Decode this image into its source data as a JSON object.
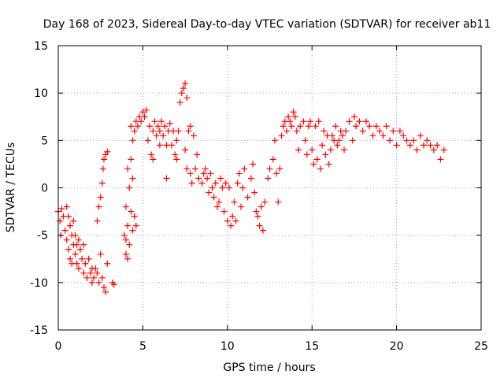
{
  "chart_data": {
    "type": "scatter",
    "title": "Day 168 of 2023, Sidereal Day-to-day VTEC variation (SDTVAR) for receiver ab11",
    "xlabel": "GPS time / hours",
    "ylabel": "SDTVAR / TECUs",
    "xlim": [
      0,
      25
    ],
    "ylim": [
      -15,
      15
    ],
    "xticks": [
      0,
      5,
      10,
      15,
      20,
      25
    ],
    "yticks": [
      -15,
      -10,
      -5,
      0,
      5,
      10,
      15
    ],
    "xtick_labels": [
      "0",
      "5",
      "10",
      "15",
      "20",
      "25"
    ],
    "ytick_labels": [
      "-15",
      "-10",
      "-5",
      "0",
      "5",
      "10",
      "15"
    ],
    "grid": true,
    "marker": "plus",
    "marker_color": "#ff0000",
    "series": [
      {
        "name": "SDTVAR",
        "points": [
          [
            0.0,
            -2.5
          ],
          [
            0.1,
            -3.5
          ],
          [
            0.15,
            -5.0
          ],
          [
            0.2,
            -2.2
          ],
          [
            0.3,
            -3.0
          ],
          [
            0.4,
            -4.5
          ],
          [
            0.5,
            -2.0
          ],
          [
            0.5,
            -5.5
          ],
          [
            0.6,
            -3.0
          ],
          [
            0.6,
            -6.5
          ],
          [
            0.7,
            -4.0
          ],
          [
            0.7,
            -7.5
          ],
          [
            0.8,
            -5.0
          ],
          [
            0.8,
            -8.0
          ],
          [
            0.9,
            -6.0
          ],
          [
            0.9,
            -3.5
          ],
          [
            1.0,
            -7.0
          ],
          [
            1.0,
            -5.0
          ],
          [
            1.1,
            -8.0
          ],
          [
            1.1,
            -6.0
          ],
          [
            1.2,
            -5.5
          ],
          [
            1.2,
            -8.5
          ],
          [
            1.3,
            -6.5
          ],
          [
            1.4,
            -7.5
          ],
          [
            1.5,
            -6.0
          ],
          [
            1.5,
            -9.0
          ],
          [
            1.6,
            -8.0
          ],
          [
            1.7,
            -9.5
          ],
          [
            1.8,
            -7.5
          ],
          [
            1.9,
            -9.0
          ],
          [
            2.0,
            -8.5
          ],
          [
            2.0,
            -10.0
          ],
          [
            2.1,
            -9.5
          ],
          [
            2.2,
            -8.5
          ],
          [
            2.3,
            -9.0
          ],
          [
            2.3,
            -3.5
          ],
          [
            2.4,
            -10.0
          ],
          [
            2.4,
            -2.0
          ],
          [
            2.5,
            -7.0
          ],
          [
            2.5,
            -1.0
          ],
          [
            2.6,
            -9.5
          ],
          [
            2.6,
            0.5
          ],
          [
            2.65,
            2.0
          ],
          [
            2.7,
            -10.5
          ],
          [
            2.7,
            3.0
          ],
          [
            2.8,
            -11.0
          ],
          [
            2.8,
            3.5
          ],
          [
            2.9,
            3.8
          ],
          [
            2.9,
            -8.0
          ],
          [
            3.2,
            -10.0
          ],
          [
            3.3,
            -10.2
          ],
          [
            3.9,
            -5.0
          ],
          [
            4.0,
            -7.0
          ],
          [
            4.0,
            -5.5
          ],
          [
            4.0,
            -2.0
          ],
          [
            4.1,
            -7.5
          ],
          [
            4.1,
            -4.0
          ],
          [
            4.1,
            2.0
          ],
          [
            4.2,
            -6.0
          ],
          [
            4.2,
            0.0
          ],
          [
            4.3,
            -2.5
          ],
          [
            4.3,
            3.0
          ],
          [
            4.3,
            6.5
          ],
          [
            4.4,
            -4.5
          ],
          [
            4.4,
            1.0
          ],
          [
            4.4,
            5.0
          ],
          [
            4.5,
            -3.0
          ],
          [
            4.5,
            6.0
          ],
          [
            4.6,
            -4.0
          ],
          [
            4.6,
            7.0
          ],
          [
            4.7,
            6.5
          ],
          [
            4.8,
            7.5
          ],
          [
            4.9,
            7.0
          ],
          [
            5.0,
            8.0
          ],
          [
            5.1,
            7.5
          ],
          [
            5.2,
            8.2
          ],
          [
            5.3,
            5.0
          ],
          [
            5.4,
            6.5
          ],
          [
            5.5,
            3.5
          ],
          [
            5.6,
            6.0
          ],
          [
            5.6,
            3.0
          ],
          [
            5.7,
            7.0
          ],
          [
            5.8,
            5.5
          ],
          [
            5.9,
            6.5
          ],
          [
            6.0,
            6.0
          ],
          [
            6.0,
            4.5
          ],
          [
            6.1,
            7.0
          ],
          [
            6.2,
            5.5
          ],
          [
            6.3,
            6.5
          ],
          [
            6.4,
            4.5
          ],
          [
            6.4,
            1.0
          ],
          [
            6.5,
            6.0
          ],
          [
            6.6,
            6.8
          ],
          [
            6.7,
            4.5
          ],
          [
            6.8,
            6.0
          ],
          [
            6.9,
            3.5
          ],
          [
            7.0,
            5.0
          ],
          [
            7.0,
            3.0
          ],
          [
            7.1,
            6.0
          ],
          [
            7.2,
            9.0
          ],
          [
            7.3,
            10.0
          ],
          [
            7.4,
            10.5
          ],
          [
            7.5,
            11.0
          ],
          [
            7.5,
            4.0
          ],
          [
            7.6,
            9.5
          ],
          [
            7.6,
            2.0
          ],
          [
            7.7,
            6.0
          ],
          [
            7.8,
            1.5
          ],
          [
            7.8,
            6.5
          ],
          [
            7.9,
            0.5
          ],
          [
            8.0,
            5.5
          ],
          [
            8.1,
            2.0
          ],
          [
            8.2,
            3.5
          ],
          [
            8.3,
            1.0
          ],
          [
            8.5,
            0.5
          ],
          [
            8.6,
            1.5
          ],
          [
            8.7,
            2.0
          ],
          [
            8.8,
            1.0
          ],
          [
            8.9,
            -0.5
          ],
          [
            9.0,
            1.5
          ],
          [
            9.1,
            0.0
          ],
          [
            9.2,
            -1.0
          ],
          [
            9.3,
            0.5
          ],
          [
            9.4,
            -2.0
          ],
          [
            9.5,
            -1.5
          ],
          [
            9.6,
            1.0
          ],
          [
            9.7,
            0.0
          ],
          [
            9.8,
            -2.5
          ],
          [
            9.9,
            0.5
          ],
          [
            10.0,
            -3.5
          ],
          [
            10.1,
            0.0
          ],
          [
            10.2,
            -4.0
          ],
          [
            10.3,
            -3.0
          ],
          [
            10.4,
            -1.5
          ],
          [
            10.5,
            -3.5
          ],
          [
            10.6,
            0.5
          ],
          [
            10.7,
            1.5
          ],
          [
            10.8,
            -2.0
          ],
          [
            10.9,
            0.0
          ],
          [
            11.0,
            2.0
          ],
          [
            11.2,
            -1.0
          ],
          [
            11.4,
            1.0
          ],
          [
            11.5,
            2.5
          ],
          [
            11.6,
            -0.5
          ],
          [
            11.7,
            -2.5
          ],
          [
            11.8,
            -3.0
          ],
          [
            11.9,
            -4.0
          ],
          [
            12.0,
            -2.0
          ],
          [
            12.1,
            -4.5
          ],
          [
            12.2,
            -1.5
          ],
          [
            12.4,
            1.0
          ],
          [
            12.5,
            2.0
          ],
          [
            12.7,
            3.0
          ],
          [
            12.8,
            5.0
          ],
          [
            12.9,
            1.5
          ],
          [
            13.0,
            -1.5
          ],
          [
            13.1,
            2.0
          ],
          [
            13.2,
            5.5
          ],
          [
            13.3,
            6.5
          ],
          [
            13.4,
            7.0
          ],
          [
            13.5,
            6.0
          ],
          [
            13.6,
            7.5
          ],
          [
            13.7,
            7.0
          ],
          [
            13.8,
            6.5
          ],
          [
            13.9,
            8.0
          ],
          [
            14.0,
            7.5
          ],
          [
            14.1,
            6.0
          ],
          [
            14.2,
            4.0
          ],
          [
            14.3,
            6.5
          ],
          [
            14.5,
            7.0
          ],
          [
            14.6,
            5.0
          ],
          [
            14.7,
            3.5
          ],
          [
            14.8,
            6.5
          ],
          [
            14.9,
            7.0
          ],
          [
            15.0,
            4.0
          ],
          [
            15.1,
            2.5
          ],
          [
            15.2,
            6.5
          ],
          [
            15.3,
            3.0
          ],
          [
            15.4,
            7.0
          ],
          [
            15.5,
            2.0
          ],
          [
            15.6,
            4.5
          ],
          [
            15.7,
            6.0
          ],
          [
            15.8,
            3.5
          ],
          [
            15.9,
            5.5
          ],
          [
            16.0,
            2.5
          ],
          [
            16.1,
            4.0
          ],
          [
            16.2,
            5.5
          ],
          [
            16.3,
            5.0
          ],
          [
            16.4,
            6.5
          ],
          [
            16.5,
            4.5
          ],
          [
            16.6,
            5.0
          ],
          [
            16.7,
            6.0
          ],
          [
            16.8,
            5.5
          ],
          [
            16.9,
            4.0
          ],
          [
            17.0,
            6.0
          ],
          [
            17.2,
            7.0
          ],
          [
            17.4,
            5.0
          ],
          [
            17.5,
            7.5
          ],
          [
            17.6,
            6.5
          ],
          [
            17.8,
            7.0
          ],
          [
            18.0,
            6.0
          ],
          [
            18.2,
            7.0
          ],
          [
            18.4,
            6.5
          ],
          [
            18.6,
            5.5
          ],
          [
            18.8,
            6.5
          ],
          [
            19.0,
            6.0
          ],
          [
            19.2,
            5.5
          ],
          [
            19.4,
            6.5
          ],
          [
            19.6,
            5.0
          ],
          [
            19.8,
            6.0
          ],
          [
            20.0,
            4.5
          ],
          [
            20.2,
            6.0
          ],
          [
            20.4,
            5.5
          ],
          [
            20.6,
            5.0
          ],
          [
            20.8,
            4.5
          ],
          [
            21.0,
            5.0
          ],
          [
            21.2,
            4.0
          ],
          [
            21.4,
            5.5
          ],
          [
            21.6,
            4.5
          ],
          [
            21.8,
            5.0
          ],
          [
            22.0,
            4.5
          ],
          [
            22.2,
            4.0
          ],
          [
            22.4,
            4.5
          ],
          [
            22.6,
            3.0
          ],
          [
            22.8,
            4.0
          ]
        ]
      }
    ]
  }
}
